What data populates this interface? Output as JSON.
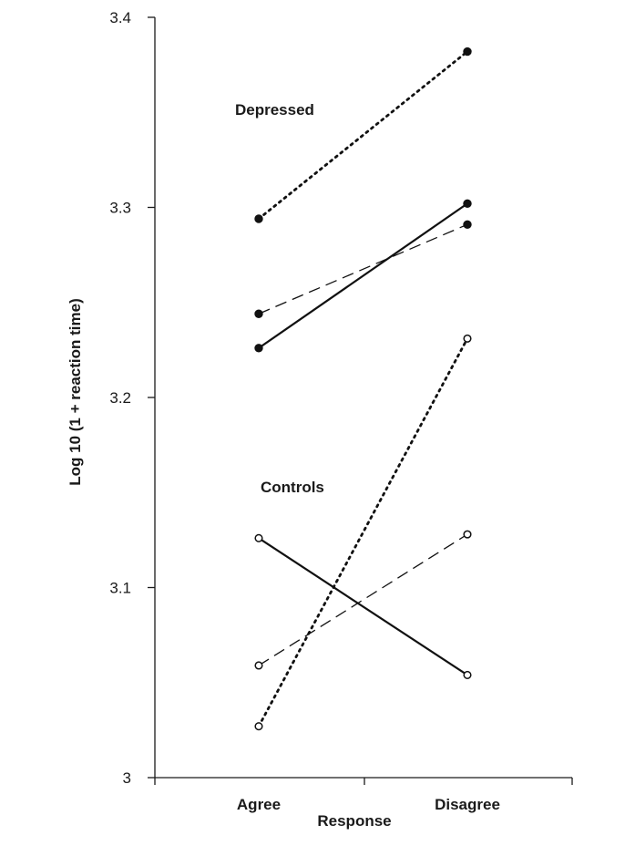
{
  "chart_data": {
    "type": "line",
    "categories": [
      "Agree",
      "Disagree"
    ],
    "xlabel": "Response",
    "ylabel": "Log 10 (1 + reaction time)",
    "ylim": [
      3.0,
      3.4
    ],
    "yticks": [
      3,
      3.1,
      3.2,
      3.3,
      3.4
    ],
    "ytick_labels": [
      "3",
      "3.1",
      "3.2",
      "3.3",
      "3.4"
    ],
    "grid": false,
    "legend": "none",
    "annotations": [
      {
        "text": "Depressed",
        "group": "depressed"
      },
      {
        "text": "Controls",
        "group": "controls"
      }
    ],
    "series": [
      {
        "group": "depressed",
        "line_style": "dotted",
        "marker": "filled-circle",
        "values": [
          3.294,
          3.382
        ]
      },
      {
        "group": "depressed",
        "line_style": "solid",
        "marker": "filled-circle",
        "values": [
          3.226,
          3.302
        ]
      },
      {
        "group": "depressed",
        "line_style": "dashed",
        "marker": "filled-circle",
        "values": [
          3.244,
          3.291
        ]
      },
      {
        "group": "controls",
        "line_style": "dotted",
        "marker": "open-circle",
        "values": [
          3.027,
          3.231
        ]
      },
      {
        "group": "controls",
        "line_style": "solid",
        "marker": "open-circle",
        "values": [
          3.126,
          3.054
        ]
      },
      {
        "group": "controls",
        "line_style": "dashed",
        "marker": "open-circle",
        "values": [
          3.059,
          3.128
        ]
      }
    ]
  }
}
